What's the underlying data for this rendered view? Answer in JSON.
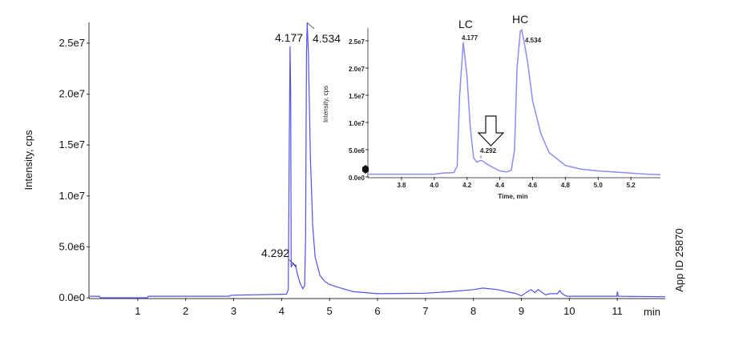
{
  "chart_data": [
    {
      "type": "line",
      "xlabel": "min",
      "ylabel": "Intensity, cps",
      "xlim": [
        0,
        12
      ],
      "ylim": [
        0,
        27000000
      ],
      "x_ticks": [
        "1",
        "2",
        "3",
        "4",
        "5",
        "6",
        "7",
        "8",
        "9",
        "10",
        "11"
      ],
      "y_ticks": [
        "0.0e0",
        "5.0e6",
        "1.0e7",
        "1.5e7",
        "2.0e7",
        "2.5e7"
      ],
      "grid": false,
      "line_color": "#5050f0",
      "annotations": [
        "4.177",
        "4.534",
        "4.292"
      ],
      "side_label": "App ID 25870",
      "series": [
        {
          "x": [
            0,
            0.2,
            0.22,
            1.2,
            1.22,
            2.9,
            2.95,
            4.1,
            4.14,
            4.16,
            4.177,
            4.19,
            4.2,
            4.24,
            4.28,
            4.292,
            4.32,
            4.38,
            4.44,
            4.48,
            4.5,
            4.52,
            4.534,
            4.56,
            4.6,
            4.65,
            4.7,
            4.8,
            4.9,
            5.0,
            5.2,
            5.5,
            6.0,
            7.0,
            7.5,
            8.0,
            8.2,
            8.5,
            8.9,
            9.0,
            9.2,
            9.28,
            9.35,
            9.5,
            9.6,
            9.75,
            9.8,
            9.85,
            9.95,
            10.99,
            11.0,
            11.02,
            12.0
          ],
          "y": [
            150000,
            150000,
            0,
            0,
            150000,
            150000,
            250000,
            350000,
            800000,
            15000000,
            24700000,
            20000000,
            3000000,
            3400000,
            3100000,
            3200000,
            2500000,
            1500000,
            900000,
            1200000,
            6000000,
            24000000,
            27000000,
            24000000,
            14000000,
            7000000,
            4000000,
            2200000,
            1600000,
            1300000,
            1000000,
            600000,
            400000,
            450000,
            600000,
            800000,
            950000,
            800000,
            400000,
            200000,
            800000,
            500000,
            800000,
            300000,
            400000,
            400000,
            700000,
            400000,
            150000,
            150000,
            600000,
            150000,
            100000
          ]
        }
      ]
    },
    {
      "type": "line",
      "xlabel": "Time, min",
      "ylabel": "Intensity, cps",
      "xlim": [
        3.6,
        5.38
      ],
      "ylim": [
        0,
        27000000
      ],
      "x_ticks": [
        "3.8",
        "4.0",
        "4.2",
        "4.4",
        "4.6",
        "4.8",
        "5.0",
        "5.2"
      ],
      "y_ticks": [
        "0.0e0",
        "5.0e6",
        "1.0e7",
        "1.5e7",
        "2.0e7",
        "2.5e7"
      ],
      "grid": false,
      "line_color": "#8c8cf5",
      "annotations": [
        "4.177",
        "4.534",
        "4.292"
      ],
      "peak_labels": [
        "LC",
        "HC"
      ],
      "series": [
        {
          "x": [
            3.6,
            4.0,
            4.05,
            4.12,
            4.14,
            4.155,
            4.177,
            4.2,
            4.22,
            4.24,
            4.26,
            4.28,
            4.292,
            4.32,
            4.36,
            4.4,
            4.44,
            4.47,
            4.49,
            4.505,
            4.525,
            4.534,
            4.55,
            4.57,
            4.6,
            4.65,
            4.7,
            4.75,
            4.8,
            4.9,
            5.0,
            5.1,
            5.2,
            5.3,
            5.38
          ],
          "y": [
            500000,
            500000,
            700000,
            800000,
            2000000,
            15000000,
            24700000,
            18500000,
            9000000,
            3500000,
            2700000,
            3000000,
            3000000,
            2400000,
            1700000,
            1100000,
            900000,
            1200000,
            5000000,
            20000000,
            26800000,
            27000000,
            24500000,
            21000000,
            14000000,
            8000000,
            4500000,
            3300000,
            2100000,
            1400000,
            1100000,
            900000,
            700000,
            500000,
            400000
          ]
        }
      ]
    }
  ]
}
